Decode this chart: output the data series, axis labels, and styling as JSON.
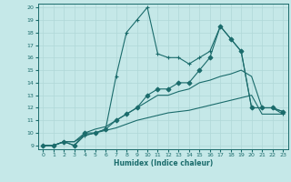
{
  "xlabel": "Humidex (Indice chaleur)",
  "xlim": [
    -0.5,
    23.5
  ],
  "ylim": [
    9,
    20
  ],
  "xticks": [
    0,
    1,
    2,
    3,
    4,
    5,
    6,
    7,
    8,
    9,
    10,
    11,
    12,
    13,
    14,
    15,
    16,
    17,
    18,
    19,
    20,
    21,
    22,
    23
  ],
  "yticks": [
    9,
    10,
    11,
    12,
    13,
    14,
    15,
    16,
    17,
    18,
    19,
    20
  ],
  "bg_color": "#c5e8e8",
  "line_color": "#1a6b6b",
  "grid_color": "#b0d8d8",
  "series": [
    {
      "x": [
        0,
        1,
        2,
        3,
        4,
        5,
        6,
        7,
        8,
        9,
        10,
        11,
        12,
        13,
        14,
        15,
        16,
        17,
        18,
        19,
        20,
        21,
        22,
        23
      ],
      "y": [
        9,
        9,
        9.3,
        9.3,
        9.8,
        10,
        10.2,
        10.4,
        10.7,
        11,
        11.2,
        11.4,
        11.6,
        11.7,
        11.8,
        12,
        12.2,
        12.4,
        12.6,
        12.8,
        13,
        11.5,
        11.5,
        11.5
      ],
      "marker": null,
      "lw": 0.8
    },
    {
      "x": [
        0,
        1,
        2,
        3,
        4,
        5,
        6,
        7,
        8,
        9,
        10,
        11,
        12,
        13,
        14,
        15,
        16,
        17,
        18,
        19,
        20,
        21,
        22,
        23
      ],
      "y": [
        9,
        9,
        9.3,
        9.3,
        10,
        10.3,
        10.5,
        11,
        11.5,
        12,
        12.5,
        13,
        13,
        13.3,
        13.5,
        14,
        14.2,
        14.5,
        14.7,
        15,
        14.5,
        12,
        12,
        11.7
      ],
      "marker": null,
      "lw": 0.8
    },
    {
      "x": [
        0,
        1,
        2,
        3,
        4,
        5,
        6,
        7,
        8,
        9,
        10,
        11,
        12,
        13,
        14,
        15,
        16,
        17,
        18,
        19,
        20,
        21,
        22,
        23
      ],
      "y": [
        9,
        9,
        9.3,
        9,
        10,
        10,
        10.3,
        11,
        11.5,
        12,
        13,
        13.5,
        13.5,
        14,
        14,
        15,
        16,
        18.5,
        17.5,
        16.5,
        12,
        12,
        12,
        11.7
      ],
      "marker": "D",
      "ms": 2.5,
      "lw": 0.8
    },
    {
      "x": [
        0,
        1,
        2,
        3,
        4,
        5,
        6,
        7,
        8,
        9,
        10,
        11,
        12,
        13,
        14,
        15,
        16,
        17,
        18,
        19,
        20,
        21,
        22,
        23
      ],
      "y": [
        9,
        9,
        9.3,
        9,
        9.8,
        10,
        10.3,
        14.5,
        18,
        19,
        20,
        16.3,
        16,
        16,
        15.5,
        16,
        16.5,
        18.5,
        17.5,
        16.5,
        12,
        12,
        12,
        11.5
      ],
      "marker": "+",
      "ms": 3.5,
      "lw": 0.8
    }
  ]
}
